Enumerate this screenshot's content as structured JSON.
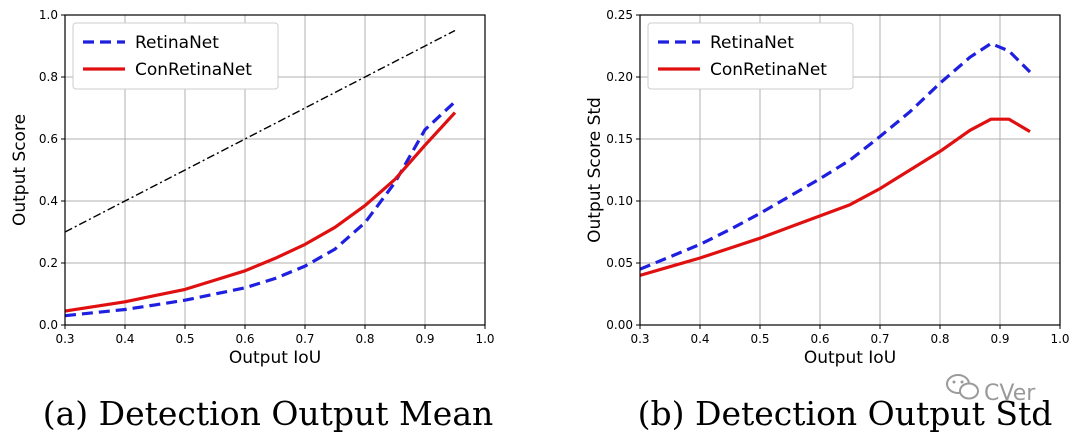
{
  "chart_data": [
    {
      "type": "line",
      "caption": "(a)  Detection Output Mean",
      "xlabel": "Output IoU",
      "ylabel": "Output Score",
      "xlim": [
        0.3,
        1.0
      ],
      "ylim": [
        0.0,
        1.0
      ],
      "xticks": [
        "0.3",
        "0.4",
        "0.5",
        "0.6",
        "0.7",
        "0.8",
        "0.9",
        "1.0"
      ],
      "yticks": [
        "0.0",
        "0.2",
        "0.4",
        "0.6",
        "0.8",
        "1.0"
      ],
      "grid": true,
      "legend": "top-left",
      "series": [
        {
          "name": "RetinaNet",
          "color": "#1f1fe0",
          "style": "dashed",
          "x": [
            0.3,
            0.35,
            0.4,
            0.45,
            0.5,
            0.55,
            0.6,
            0.65,
            0.7,
            0.75,
            0.8,
            0.85,
            0.9,
            0.95
          ],
          "y": [
            0.03,
            0.04,
            0.05,
            0.065,
            0.08,
            0.1,
            0.12,
            0.15,
            0.19,
            0.245,
            0.33,
            0.46,
            0.63,
            0.72
          ]
        },
        {
          "name": "ConRetinaNet",
          "color": "#e01010",
          "style": "solid",
          "x": [
            0.3,
            0.35,
            0.4,
            0.45,
            0.5,
            0.55,
            0.6,
            0.65,
            0.7,
            0.75,
            0.8,
            0.85,
            0.9,
            0.95
          ],
          "y": [
            0.045,
            0.06,
            0.075,
            0.095,
            0.115,
            0.145,
            0.175,
            0.215,
            0.26,
            0.315,
            0.385,
            0.47,
            0.58,
            0.685
          ]
        },
        {
          "name": "",
          "color": "#000000",
          "style": "dashdot",
          "x": [
            0.3,
            0.95
          ],
          "y": [
            0.3,
            0.95
          ]
        }
      ]
    },
    {
      "type": "line",
      "caption": "(b)  Detection Output Std",
      "xlabel": "Output IoU",
      "ylabel": "Output Score Std",
      "xlim": [
        0.3,
        1.0
      ],
      "ylim": [
        0.0,
        0.25
      ],
      "xticks": [
        "0.3",
        "0.4",
        "0.5",
        "0.6",
        "0.7",
        "0.8",
        "0.9",
        "1.0"
      ],
      "yticks": [
        "0.00",
        "0.05",
        "0.10",
        "0.15",
        "0.20",
        "0.25"
      ],
      "grid": true,
      "legend": "top-left",
      "series": [
        {
          "name": "RetinaNet",
          "color": "#1f1fe0",
          "style": "dashed",
          "x": [
            0.3,
            0.35,
            0.4,
            0.45,
            0.5,
            0.55,
            0.6,
            0.65,
            0.7,
            0.75,
            0.8,
            0.85,
            0.885,
            0.915,
            0.95
          ],
          "y": [
            0.045,
            0.055,
            0.065,
            0.077,
            0.09,
            0.104,
            0.118,
            0.133,
            0.152,
            0.172,
            0.195,
            0.216,
            0.227,
            0.221,
            0.204
          ]
        },
        {
          "name": "ConRetinaNet",
          "color": "#e01010",
          "style": "solid",
          "x": [
            0.3,
            0.35,
            0.4,
            0.45,
            0.5,
            0.55,
            0.6,
            0.65,
            0.7,
            0.75,
            0.8,
            0.85,
            0.885,
            0.915,
            0.95
          ],
          "y": [
            0.04,
            0.047,
            0.054,
            0.062,
            0.07,
            0.079,
            0.088,
            0.097,
            0.11,
            0.125,
            0.14,
            0.157,
            0.166,
            0.166,
            0.156
          ]
        }
      ]
    }
  ],
  "watermark": "CVer"
}
